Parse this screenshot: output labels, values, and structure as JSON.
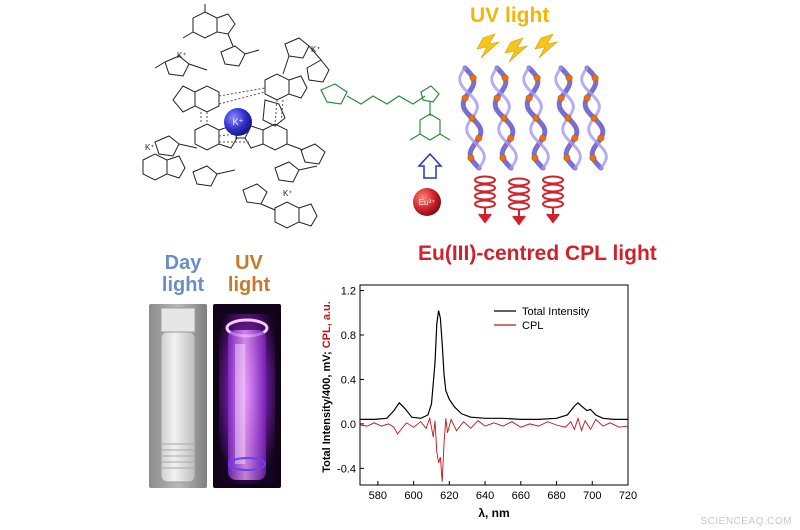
{
  "uv_title": "UV light",
  "cpl_title": "Eu(III)-centred CPL light",
  "photo_labels": {
    "day": [
      "Day",
      "light"
    ],
    "uv": [
      "UV",
      "light"
    ]
  },
  "molecule": {
    "center_ion": "K⁺",
    "metal_ion": "Eu³⁺",
    "k_labels": [
      "K⁺",
      "K⁺",
      "K⁺",
      "K⁺"
    ]
  },
  "colors": {
    "uv_yellow": "#f2b705",
    "helix_blue": "#7a6fd0",
    "eu_red": "#d0222a",
    "total_line": "#000000",
    "cpl_line": "#c0151b",
    "linker_green": "#2e8b3a"
  },
  "chart_data": {
    "type": "line",
    "xlabel": "λ, nm",
    "ylabel_parts": [
      "Total Intensity/400, mV; ",
      "CPL, a.u."
    ],
    "xlim": [
      570,
      720
    ],
    "ylim": [
      -0.55,
      1.25
    ],
    "xticks": [
      580,
      600,
      620,
      640,
      660,
      680,
      700,
      720
    ],
    "yticks": [
      -0.4,
      0.0,
      0.4,
      0.8,
      1.2
    ],
    "ytick_labels": [
      "-0.4",
      "0.0",
      "0.4",
      "0.8",
      "1.2"
    ],
    "legend_position": "top-right",
    "series": [
      {
        "name": "Total Intensity",
        "color": "#000000",
        "x": [
          570,
          578,
          585,
          589,
          592,
          595,
          599,
          604,
          608,
          610,
          612,
          613,
          614,
          615,
          616,
          617,
          618,
          620,
          623,
          627,
          632,
          640,
          650,
          660,
          670,
          680,
          686,
          690,
          692,
          694,
          697,
          699,
          702,
          706,
          712,
          720
        ],
        "y": [
          0.04,
          0.04,
          0.05,
          0.12,
          0.19,
          0.14,
          0.06,
          0.05,
          0.08,
          0.18,
          0.55,
          0.9,
          1.02,
          0.95,
          0.72,
          0.45,
          0.3,
          0.22,
          0.15,
          0.09,
          0.06,
          0.05,
          0.05,
          0.04,
          0.04,
          0.05,
          0.08,
          0.16,
          0.19,
          0.16,
          0.12,
          0.13,
          0.08,
          0.05,
          0.04,
          0.04
        ]
      },
      {
        "name": "CPL",
        "color": "#c0151b",
        "x": [
          570,
          574,
          578,
          582,
          586,
          589,
          591,
          593,
          596,
          600,
          604,
          607,
          609,
          611,
          612,
          613,
          614,
          615,
          616,
          617,
          618,
          619,
          621,
          624,
          628,
          632,
          636,
          640,
          645,
          650,
          655,
          660,
          665,
          670,
          675,
          680,
          685,
          688,
          690,
          692,
          694,
          696,
          699,
          702,
          706,
          710,
          715,
          720
        ],
        "y": [
          -0.01,
          -0.02,
          0.01,
          -0.02,
          0.0,
          -0.03,
          -0.09,
          -0.05,
          0.01,
          -0.03,
          0.02,
          -0.04,
          0.05,
          -0.12,
          0.03,
          -0.25,
          -0.35,
          -0.3,
          -0.52,
          -0.18,
          0.05,
          -0.08,
          0.04,
          -0.06,
          0.02,
          -0.04,
          0.03,
          -0.02,
          0.01,
          -0.02,
          0.02,
          -0.03,
          0.0,
          -0.02,
          0.02,
          -0.01,
          -0.03,
          0.02,
          -0.05,
          0.05,
          -0.06,
          0.03,
          -0.05,
          0.04,
          -0.02,
          0.01,
          -0.03,
          -0.02
        ]
      }
    ]
  },
  "watermark": "SCIENCEAQ.COM"
}
